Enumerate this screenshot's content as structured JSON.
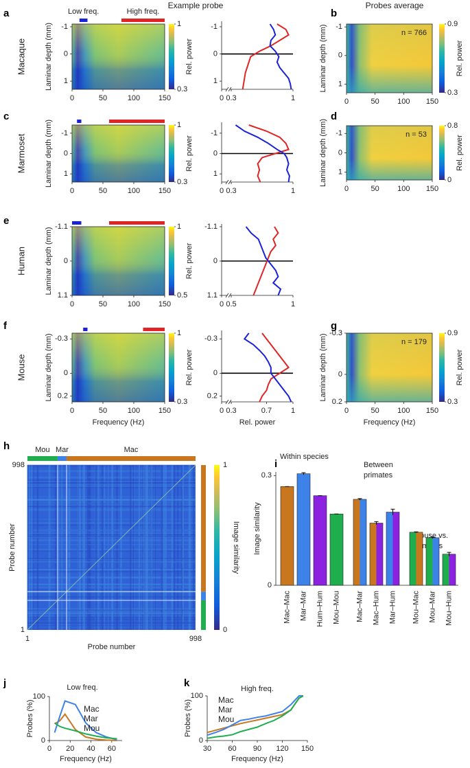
{
  "headers": {
    "example": "Example probe",
    "average": "Probes average"
  },
  "chart_data": [
    {
      "type": "heatmap",
      "panel": "a",
      "species": "Macaque",
      "species_color": "#c8771f",
      "xlim": [
        0,
        150
      ],
      "xticks": [
        0,
        50,
        100,
        150
      ],
      "ylim": [
        -1.1,
        1.3
      ],
      "yticks": [
        -1,
        0,
        1
      ],
      "ylabel": "Laminar depth (mm)",
      "clim": [
        0.3,
        1
      ],
      "cticks": [
        0.3,
        1
      ],
      "clabel": "Rel. power",
      "low_band": [
        12,
        25
      ],
      "high_band": [
        80,
        150
      ],
      "band_colors": [
        "#1a22d8",
        "#e02424"
      ],
      "band_labels": [
        "Low freq.",
        "High freq."
      ]
    },
    {
      "type": "profile",
      "depths": [
        -1.1,
        -0.9,
        -0.7,
        -0.5,
        -0.3,
        -0.1,
        0.1,
        0.3,
        0.5,
        0.7,
        0.9,
        1.1,
        1.3
      ],
      "series": [
        {
          "color": "#e02424",
          "values": [
            0.82,
            0.92,
            0.95,
            0.85,
            0.75,
            0.62,
            0.52,
            0.5,
            0.48,
            0.46,
            0.45,
            0.44,
            0.43
          ]
        },
        {
          "color": "#1a22d8",
          "values": [
            0.74,
            0.78,
            0.8,
            0.75,
            0.74,
            0.8,
            0.84,
            0.82,
            0.85,
            0.9,
            0.95,
            0.97,
            0.98
          ]
        }
      ],
      "xlim": [
        0.3,
        1
      ],
      "xticks": [
        0,
        0.3,
        1
      ],
      "ylim": [
        -1.1,
        1.3
      ],
      "yticks": [
        -1,
        0,
        1
      ],
      "reference_depth": 0
    },
    {
      "type": "heatmap",
      "panel": "b",
      "xlim": [
        0,
        150
      ],
      "xticks": [
        0,
        50,
        100,
        150
      ],
      "ylim": [
        -1.1,
        1.3
      ],
      "yticks": [
        -1,
        0,
        1
      ],
      "ylabel": "Laminar depth (mm)",
      "clim": [
        0.3,
        0.9
      ],
      "cticks": [
        0.3,
        0.9
      ],
      "clabel": "Rel. power",
      "annotation": "n = 766"
    },
    {
      "type": "heatmap",
      "panel": "c",
      "species": "Marmoset",
      "species_color": "#3d82e8",
      "xlim": [
        0,
        150
      ],
      "xticks": [
        0,
        50,
        100,
        150
      ],
      "ylim": [
        -1.4,
        1.4
      ],
      "yticks": [
        -1,
        0,
        1
      ],
      "ylabel": "Laminar depth (mm)",
      "clim": [
        0.3,
        1
      ],
      "cticks": [
        0.3,
        1
      ],
      "clabel": "Rel. power",
      "low_band": [
        8,
        15
      ],
      "high_band": [
        60,
        150
      ],
      "band_colors": [
        "#1a22d8",
        "#e02424"
      ]
    },
    {
      "type": "profile",
      "depths": [
        -1.4,
        -1.1,
        -0.8,
        -0.5,
        -0.2,
        0,
        0.2,
        0.5,
        0.8,
        1.1,
        1.4
      ],
      "series": [
        {
          "color": "#e02424",
          "values": [
            0.5,
            0.7,
            0.85,
            0.92,
            0.95,
            0.8,
            0.65,
            0.6,
            0.62,
            0.6,
            0.63
          ]
        },
        {
          "color": "#1a22d8",
          "values": [
            0.35,
            0.45,
            0.6,
            0.72,
            0.82,
            0.9,
            0.93,
            0.95,
            0.93,
            0.96,
            0.95
          ]
        }
      ],
      "xlim": [
        0.3,
        1
      ],
      "xticks": [
        0,
        0.3,
        1
      ],
      "ylim": [
        -1.4,
        1.4
      ],
      "yticks": [
        -1,
        0,
        1
      ],
      "reference_depth": 0
    },
    {
      "type": "heatmap",
      "panel": "d",
      "xlim": [
        0,
        150
      ],
      "xticks": [
        0,
        50,
        100,
        150
      ],
      "ylim": [
        -1.4,
        1.4
      ],
      "yticks": [
        -1,
        0,
        1
      ],
      "ylabel": "Laminar depth (mm)",
      "clim": [
        0,
        0.8
      ],
      "cticks": [
        0,
        0.8
      ],
      "clabel": "Rel. power",
      "annotation": "n = 53"
    },
    {
      "type": "heatmap",
      "panel": "e",
      "species": "Human",
      "species_color": "#8c22e0",
      "xlim": [
        0,
        150
      ],
      "xticks": [
        0,
        50,
        100,
        150
      ],
      "ylim": [
        -1.1,
        1.1
      ],
      "yticks": [
        -1.1,
        0,
        1.1
      ],
      "ylabel": "Laminar depth (mm)",
      "clim": [
        0.5,
        1
      ],
      "cticks": [
        0.5,
        1
      ],
      "clabel": "Rel. power",
      "low_band": [
        0,
        15
      ],
      "high_band": [
        60,
        150
      ],
      "band_colors": [
        "#1a22d8",
        "#e02424"
      ]
    },
    {
      "type": "profile",
      "depths": [
        -1.1,
        -0.9,
        -0.7,
        -0.5,
        -0.3,
        -0.1,
        0.1,
        0.3,
        0.5,
        0.7,
        0.9,
        1.1
      ],
      "series": [
        {
          "color": "#e02424",
          "values": [
            0.85,
            0.88,
            0.84,
            0.86,
            0.82,
            0.8,
            0.78,
            0.76,
            0.74,
            0.72,
            0.7,
            0.68
          ]
        },
        {
          "color": "#1a22d8",
          "values": [
            0.62,
            0.66,
            0.72,
            0.74,
            0.76,
            0.78,
            0.82,
            0.86,
            0.88,
            0.84,
            0.9,
            0.88
          ]
        }
      ],
      "xlim": [
        0.5,
        1
      ],
      "xticks": [
        0,
        0.5,
        1
      ],
      "ylim": [
        -1.1,
        1.1
      ],
      "yticks": [
        -1.1,
        0,
        1.1
      ],
      "reference_depth": 0
    },
    {
      "type": "heatmap",
      "panel": "f",
      "species": "Mouse",
      "species_color": "#1fae4e",
      "xlim": [
        0,
        150
      ],
      "xticks": [
        0,
        50,
        100,
        150
      ],
      "ylim": [
        -0.35,
        0.25
      ],
      "yticks": [
        -0.3,
        0,
        0.2
      ],
      "ylabel": "Laminar depth (mm)",
      "xlabel": "Frequency (Hz)",
      "clim": [
        0.3,
        1
      ],
      "cticks": [
        0.3,
        1
      ],
      "clabel": "Rel. power",
      "low_band": [
        18,
        25
      ],
      "high_band": [
        115,
        150
      ],
      "band_colors": [
        "#1a22d8",
        "#e02424"
      ]
    },
    {
      "type": "profile",
      "depths": [
        -0.35,
        -0.3,
        -0.25,
        -0.2,
        -0.15,
        -0.1,
        -0.05,
        0,
        0.05,
        0.1,
        0.15,
        0.2,
        0.25
      ],
      "series": [
        {
          "color": "#e02424",
          "values": [
            0.65,
            0.7,
            0.75,
            0.8,
            0.85,
            0.9,
            0.95,
            0.85,
            0.75,
            0.72,
            0.7,
            0.65,
            0.62
          ]
        },
        {
          "color": "#1a22d8",
          "values": [
            0.5,
            0.45,
            0.55,
            0.62,
            0.68,
            0.72,
            0.75,
            0.75,
            0.8,
            0.85,
            0.9,
            0.95,
            0.98
          ]
        }
      ],
      "xlim": [
        0.3,
        1
      ],
      "xticks": [
        0,
        0.3,
        0.7,
        1
      ],
      "ylim": [
        -0.35,
        0.25
      ],
      "yticks": [
        -0.3,
        0,
        0.2
      ],
      "xlabel": "Rel. power",
      "reference_depth": 0
    },
    {
      "type": "heatmap",
      "panel": "g",
      "xlim": [
        0,
        150
      ],
      "xticks": [
        0,
        50,
        100,
        150
      ],
      "ylim": [
        -0.3,
        0.2
      ],
      "yticks": [
        -0.3,
        0,
        0.2
      ],
      "ylabel": "Laminar depth (mm)",
      "xlabel": "Frequency (Hz)",
      "clim": [
        0.3,
        0.9
      ],
      "cticks": [
        0.3,
        0.9
      ],
      "clabel": "Rel. power",
      "annotation": "n = 179"
    },
    {
      "type": "matrix",
      "panel": "h",
      "xlim": [
        1,
        998
      ],
      "xticks": [
        1,
        998
      ],
      "ylim": [
        1,
        998
      ],
      "yticks": [
        1,
        998
      ],
      "xlabel": "Probe number",
      "ylabel": "Probe number",
      "groups": [
        {
          "name": "Mou",
          "color": "#1fae4e",
          "count": 179
        },
        {
          "name": "Mar",
          "color": "#3d82e8",
          "count": 53
        },
        {
          "name": "Mac",
          "color": "#c8771f",
          "count": 766
        }
      ],
      "clim": [
        0,
        1
      ],
      "cticks": [
        0,
        1
      ],
      "clabel": "Image similarity"
    },
    {
      "type": "bar",
      "panel": "i",
      "ylim": [
        0,
        0.31
      ],
      "yticks": [
        0,
        0.3
      ],
      "ylabel": "Image similarity",
      "groups": [
        {
          "label": [
            "Within species"
          ],
          "categories": [
            "Mac–Mac",
            "Mar–Mar",
            "Hum–Hum",
            "Mou–Mou"
          ],
          "values": [
            0.27,
            0.305,
            0.245,
            0.195
          ],
          "errors": [
            0,
            0.003,
            0,
            0
          ],
          "colors": [
            [
              "#c8771f",
              "#c8771f"
            ],
            [
              "#3d82e8",
              "#3d82e8"
            ],
            [
              "#8c22e0",
              "#8c22e0"
            ],
            [
              "#1fae4e",
              "#1fae4e"
            ]
          ]
        },
        {
          "label": [
            "Between",
            "primates"
          ],
          "categories": [
            "Mac–Mar",
            "Mac–Hum",
            "Mar–Hum"
          ],
          "values": [
            0.235,
            0.17,
            0.2
          ],
          "errors": [
            0.002,
            0.004,
            0.008
          ],
          "colors": [
            [
              "#c8771f",
              "#3d82e8"
            ],
            [
              "#c8771f",
              "#8c22e0"
            ],
            [
              "#3d82e8",
              "#8c22e0"
            ]
          ]
        },
        {
          "label": [
            "Mouse vs.",
            "primates"
          ],
          "categories": [
            "Mou–Mac",
            "Mou–Mar",
            "Mou–Hum"
          ],
          "values": [
            0.145,
            0.13,
            0.085
          ],
          "errors": [
            0.001,
            0.002,
            0.005
          ],
          "colors": [
            [
              "#1fae4e",
              "#c8771f"
            ],
            [
              "#1fae4e",
              "#3d82e8"
            ],
            [
              "#1fae4e",
              "#8c22e0"
            ]
          ]
        }
      ]
    },
    {
      "type": "line",
      "panel": "j",
      "title": "Low freq.",
      "xlabel": "Frequency (Hz)",
      "ylabel": "Probes (%)",
      "xlim": [
        0,
        70
      ],
      "xticks": [
        0,
        20,
        40,
        60
      ],
      "ylim": [
        0,
        100
      ],
      "yticks": [
        0,
        100
      ],
      "x": [
        5,
        10,
        15,
        25,
        35,
        45,
        55,
        65
      ],
      "series": [
        {
          "name": "Mac",
          "color": "#c8771f",
          "values": [
            38,
            45,
            60,
            25,
            8,
            3,
            1,
            0
          ]
        },
        {
          "name": "Mar",
          "color": "#3d82e8",
          "values": [
            18,
            55,
            90,
            82,
            40,
            18,
            8,
            2
          ]
        },
        {
          "name": "Mou",
          "color": "#1fae4e",
          "values": [
            40,
            32,
            28,
            22,
            15,
            10,
            6,
            4
          ]
        }
      ]
    },
    {
      "type": "line",
      "panel": "k",
      "title": "High freq.",
      "xlabel": "Frequency (Hz)",
      "ylabel": "Probes (%)",
      "xlim": [
        30,
        150
      ],
      "xticks": [
        30,
        60,
        90,
        120,
        150
      ],
      "ylim": [
        0,
        100
      ],
      "yticks": [
        0,
        100
      ],
      "x": [
        30,
        40,
        50,
        60,
        70,
        80,
        90,
        100,
        110,
        120,
        130,
        140,
        145
      ],
      "series": [
        {
          "name": "Mac",
          "color": "#c8771f",
          "values": [
            18,
            23,
            28,
            33,
            38,
            42,
            46,
            50,
            54,
            58,
            68,
            95,
            100
          ]
        },
        {
          "name": "Mar",
          "color": "#3d82e8",
          "values": [
            12,
            18,
            25,
            35,
            45,
            48,
            52,
            55,
            60,
            65,
            80,
            100,
            100
          ]
        },
        {
          "name": "Mou",
          "color": "#1fae4e",
          "values": [
            5,
            8,
            10,
            13,
            20,
            25,
            30,
            38,
            45,
            55,
            68,
            95,
            100
          ]
        }
      ]
    }
  ]
}
